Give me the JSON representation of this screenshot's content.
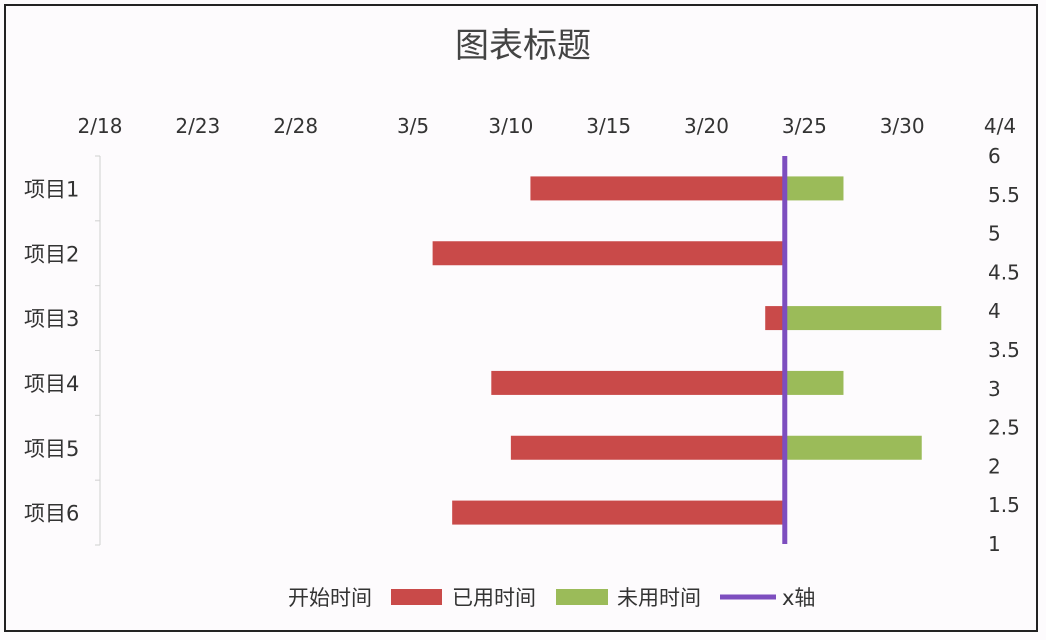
{
  "chart_data": {
    "type": "bar",
    "orientation": "horizontal",
    "stacked": true,
    "title": "图表标题",
    "categories": [
      "项目1",
      "项目2",
      "项目3",
      "项目4",
      "项目5",
      "项目6"
    ],
    "x_ticks": [
      "2/18",
      "2/23",
      "2/28",
      "3/5",
      "3/10",
      "3/15",
      "3/20",
      "3/25",
      "3/30",
      "4/4"
    ],
    "x_range": [
      "2/18",
      "4/4"
    ],
    "y2_ticks": [
      "6",
      "5.5",
      "5",
      "4.5",
      "4",
      "3.5",
      "3",
      "2.5",
      "2",
      "1.5",
      "1"
    ],
    "y2_range": [
      1,
      6
    ],
    "today": "3/24",
    "series": [
      {
        "name": "开始时间",
        "role": "invisible-offset",
        "start": [
          "3/11",
          "3/6",
          "3/23",
          "3/9",
          "3/10",
          "3/7"
        ]
      },
      {
        "name": "已用时间",
        "color": "#c94a49",
        "values": [
          13,
          18,
          1,
          15,
          14,
          17
        ]
      },
      {
        "name": "未用时间",
        "color": "#9bbb59",
        "values": [
          3,
          0,
          8,
          3,
          7,
          0
        ]
      },
      {
        "name": "x轴",
        "color": "#7d4ebf",
        "type": "line"
      }
    ],
    "grid": false,
    "legend_position": "bottom"
  }
}
